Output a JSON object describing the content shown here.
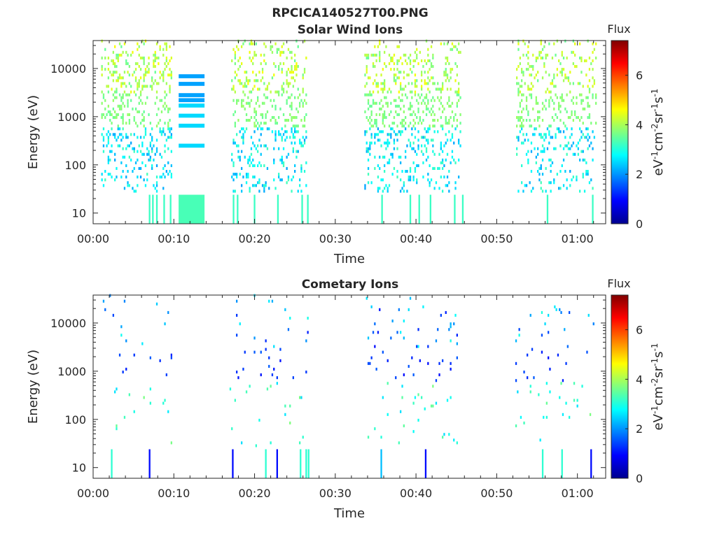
{
  "figure_title": "RPCICA140527T00.PNG",
  "colorbar": {
    "title": "Flux",
    "unit_parts": [
      "eV",
      "-1",
      "cm",
      "-2",
      "sr",
      "-1",
      "s",
      "-1"
    ],
    "ticks": [
      "0",
      "2",
      "4",
      "6"
    ],
    "range": [
      0,
      7.4
    ],
    "colormap": "jet"
  },
  "chart_data": [
    {
      "type": "heatmap",
      "title": "Solar Wind Ions",
      "xlabel": "Time",
      "ylabel": "Energy (eV)",
      "x_ticks": [
        "00:00",
        "00:10",
        "00:20",
        "00:30",
        "00:40",
        "00:50",
        "01:00"
      ],
      "y_ticks": [
        "10",
        "100",
        "1000",
        "10000"
      ],
      "x_range_min": [
        0,
        63.5
      ],
      "y_scale": "log",
      "y_range_eV": [
        6,
        38000
      ],
      "y_row_ratio": 1.145,
      "grid": false,
      "note_bars_eV": [
        6900,
        4800,
        2800,
        2200,
        1700,
        1050,
        650,
        250
      ],
      "bursts": [
        {
          "t0": 1.0,
          "t1": 9.6,
          "density": 0.45,
          "lo": 3.5,
          "hi": 4.6,
          "hi_lo": 3.3,
          "mid": 2.1
        },
        {
          "t0": 17.1,
          "t1": 26.3,
          "density": 0.45,
          "lo": 3.5,
          "hi": 4.6,
          "hi_lo": 3.3,
          "mid": 2.1
        },
        {
          "t0": 33.6,
          "t1": 45.5,
          "density": 0.45,
          "lo": 3.5,
          "hi": 4.6,
          "hi_lo": 3.3,
          "mid": 2.1
        },
        {
          "t0": 52.4,
          "t1": 62.4,
          "density": 0.38,
          "lo": 3.5,
          "hi": 4.5,
          "hi_lo": 3.3,
          "mid": 2.1
        }
      ],
      "low_energy_events": [
        {
          "t": 6.9,
          "lo": 5.6,
          "hi": 24,
          "value": 3.2
        },
        {
          "t": 7.3,
          "lo": 5.6,
          "hi": 24,
          "value": 3.2
        },
        {
          "t": 7.8,
          "lo": 5.6,
          "hi": 24,
          "value": 3.2
        },
        {
          "t": 8.7,
          "lo": 5.6,
          "hi": 24,
          "value": 3.2
        },
        {
          "t": 9.5,
          "lo": 5.6,
          "hi": 24,
          "value": 3.2
        },
        {
          "t": 10.6,
          "lo": 5.6,
          "hi": 24,
          "value": 3.3
        },
        {
          "t": 11.2,
          "lo": 5.6,
          "hi": 24,
          "value": 3.3
        },
        {
          "t": 11.8,
          "lo": 5.6,
          "hi": 24,
          "value": 3.3
        },
        {
          "t": 12.4,
          "lo": 5.6,
          "hi": 24,
          "value": 3.3
        },
        {
          "t": 13.0,
          "lo": 5.6,
          "hi": 24,
          "value": 3.3
        },
        {
          "t": 17.3,
          "lo": 5.6,
          "hi": 24,
          "value": 3.2
        },
        {
          "t": 17.8,
          "lo": 5.6,
          "hi": 24,
          "value": 3.2
        },
        {
          "t": 19.9,
          "lo": 5.6,
          "hi": 24,
          "value": 3.2
        },
        {
          "t": 22.8,
          "lo": 5.6,
          "hi": 24,
          "value": 3.2
        },
        {
          "t": 25.8,
          "lo": 5.6,
          "hi": 24,
          "value": 3.2
        },
        {
          "t": 26.5,
          "lo": 5.6,
          "hi": 24,
          "value": 3.2
        },
        {
          "t": 35.7,
          "lo": 5.6,
          "hi": 24,
          "value": 3.2
        },
        {
          "t": 39.2,
          "lo": 5.6,
          "hi": 24,
          "value": 3.2
        },
        {
          "t": 40.3,
          "lo": 5.6,
          "hi": 24,
          "value": 3.2
        },
        {
          "t": 41.7,
          "lo": 5.6,
          "hi": 24,
          "value": 3.2
        },
        {
          "t": 44.7,
          "lo": 5.6,
          "hi": 24,
          "value": 3.2
        },
        {
          "t": 45.7,
          "lo": 5.6,
          "hi": 24,
          "value": 3.2
        },
        {
          "t": 56.2,
          "lo": 5.6,
          "hi": 24,
          "value": 3.2
        },
        {
          "t": 61.8,
          "lo": 5.6,
          "hi": 24,
          "value": 3.2
        }
      ]
    },
    {
      "type": "heatmap",
      "title": "Cometary Ions",
      "xlabel": "Time",
      "ylabel": "Energy (eV)",
      "x_ticks": [
        "00:00",
        "00:10",
        "00:20",
        "00:30",
        "00:40",
        "00:50",
        "01:00"
      ],
      "y_ticks": [
        "10",
        "100",
        "1000",
        "10000"
      ],
      "x_range_min": [
        0,
        63.5
      ],
      "y_scale": "log",
      "y_range_eV": [
        6,
        38000
      ],
      "y_row_ratio": 1.145,
      "grid": false,
      "bursts": [
        {
          "t0": 1.0,
          "t1": 10.2,
          "density": 0.05,
          "lo": 1.0,
          "hi": 3.0,
          "hi_lo": 1.0,
          "mid": 2.5
        },
        {
          "t0": 16.9,
          "t1": 26.6,
          "density": 0.05,
          "lo": 1.0,
          "hi": 3.0,
          "hi_lo": 1.0,
          "mid": 2.5
        },
        {
          "t0": 33.8,
          "t1": 45.6,
          "density": 0.05,
          "lo": 1.0,
          "hi": 3.0,
          "hi_lo": 1.0,
          "mid": 2.5
        },
        {
          "t0": 52.3,
          "t1": 62.3,
          "density": 0.05,
          "lo": 1.0,
          "hi": 3.0,
          "hi_lo": 1.0,
          "mid": 2.5
        }
      ],
      "low_energy_events": [
        {
          "t": 2.2,
          "lo": 5.6,
          "hi": 24,
          "value": 3.1
        },
        {
          "t": 6.9,
          "lo": 5.6,
          "hi": 24,
          "value": 1.0
        },
        {
          "t": 17.2,
          "lo": 5.6,
          "hi": 24,
          "value": 1.0
        },
        {
          "t": 21.3,
          "lo": 5.6,
          "hi": 24,
          "value": 3.1
        },
        {
          "t": 22.7,
          "lo": 5.6,
          "hi": 24,
          "value": 1.0
        },
        {
          "t": 25.6,
          "lo": 5.6,
          "hi": 24,
          "value": 3.1
        },
        {
          "t": 26.3,
          "lo": 5.6,
          "hi": 24,
          "value": 3.1
        },
        {
          "t": 26.6,
          "lo": 5.6,
          "hi": 24,
          "value": 3.1
        },
        {
          "t": 35.6,
          "lo": 5.6,
          "hi": 24,
          "value": 2.3
        },
        {
          "t": 41.1,
          "lo": 5.6,
          "hi": 24,
          "value": 1.0
        },
        {
          "t": 55.6,
          "lo": 5.6,
          "hi": 24,
          "value": 3.1
        },
        {
          "t": 58.0,
          "lo": 5.6,
          "hi": 24,
          "value": 3.1
        },
        {
          "t": 61.6,
          "lo": 5.6,
          "hi": 24,
          "value": 1.0
        }
      ]
    }
  ]
}
